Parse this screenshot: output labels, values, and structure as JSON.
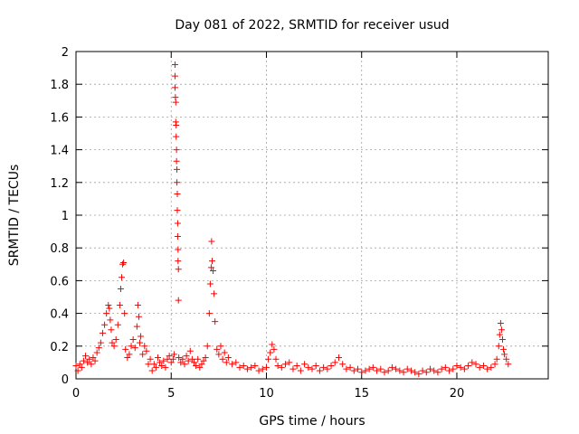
{
  "chart_data": {
    "type": "scatter",
    "title": "Day 081 of 2022, SRMTID for receiver usud",
    "xlabel": "GPS time / hours",
    "ylabel": "SRMTID / TECUs",
    "xlim": [
      0,
      24.8
    ],
    "ylim": [
      0,
      2
    ],
    "xticks": [
      0,
      5,
      10,
      15,
      20
    ],
    "yticks": [
      0,
      0.2,
      0.4,
      0.6,
      0.8,
      1,
      1.2,
      1.4,
      1.6,
      1.8,
      2
    ],
    "grid": true,
    "marker": "+",
    "color": "#ff0000",
    "series": [
      {
        "name": "usud",
        "x": [
          0.0,
          0.1,
          0.2,
          0.3,
          0.4,
          0.5,
          0.6,
          0.7,
          0.8,
          0.9,
          1.0,
          1.1,
          1.2,
          1.3,
          1.4,
          1.5,
          1.6,
          1.7,
          1.75,
          1.8,
          1.85,
          1.9,
          2.0,
          2.1,
          2.2,
          2.3,
          2.35,
          2.4,
          2.45,
          2.5,
          2.55,
          2.6,
          2.7,
          2.8,
          2.9,
          3.0,
          3.1,
          3.2,
          3.25,
          3.3,
          3.35,
          3.4,
          3.5,
          3.6,
          3.7,
          3.8,
          3.9,
          4.0,
          4.1,
          4.2,
          4.3,
          4.4,
          4.5,
          4.6,
          4.7,
          4.8,
          4.9,
          5.0,
          5.1,
          5.15,
          5.2,
          5.2,
          5.2,
          5.22,
          5.24,
          5.24,
          5.26,
          5.26,
          5.28,
          5.28,
          5.3,
          5.3,
          5.32,
          5.32,
          5.34,
          5.34,
          5.36,
          5.36,
          5.38,
          5.38,
          5.4,
          5.5,
          5.6,
          5.7,
          5.8,
          5.9,
          6.0,
          6.1,
          6.2,
          6.3,
          6.4,
          6.5,
          6.6,
          6.7,
          6.8,
          6.9,
          7.0,
          7.05,
          7.1,
          7.12,
          7.15,
          7.2,
          7.25,
          7.3,
          7.4,
          7.5,
          7.6,
          7.7,
          7.8,
          7.9,
          8.0,
          8.2,
          8.4,
          8.6,
          8.8,
          9.0,
          9.2,
          9.4,
          9.6,
          9.8,
          10.0,
          10.1,
          10.2,
          10.3,
          10.4,
          10.5,
          10.6,
          10.8,
          11.0,
          11.2,
          11.4,
          11.6,
          11.8,
          12.0,
          12.2,
          12.4,
          12.6,
          12.8,
          13.0,
          13.2,
          13.4,
          13.6,
          13.8,
          14.0,
          14.2,
          14.4,
          14.6,
          14.8,
          15.0,
          15.2,
          15.4,
          15.6,
          15.8,
          16.0,
          16.2,
          16.4,
          16.6,
          16.8,
          17.0,
          17.2,
          17.4,
          17.6,
          17.8,
          18.0,
          18.2,
          18.4,
          18.6,
          18.8,
          19.0,
          19.2,
          19.4,
          19.6,
          19.8,
          20.0,
          20.2,
          20.4,
          20.6,
          20.8,
          21.0,
          21.2,
          21.4,
          21.6,
          21.8,
          22.0,
          22.1,
          22.2,
          22.25,
          22.3,
          22.35,
          22.4,
          22.45,
          22.5,
          22.6,
          22.7
        ],
        "y": [
          0.08,
          0.05,
          0.09,
          0.07,
          0.11,
          0.14,
          0.1,
          0.12,
          0.09,
          0.13,
          0.11,
          0.16,
          0.19,
          0.22,
          0.28,
          0.33,
          0.4,
          0.45,
          0.43,
          0.36,
          0.3,
          0.22,
          0.2,
          0.24,
          0.33,
          0.45,
          0.55,
          0.62,
          0.7,
          0.71,
          0.4,
          0.18,
          0.13,
          0.15,
          0.2,
          0.24,
          0.19,
          0.32,
          0.45,
          0.38,
          0.22,
          0.26,
          0.15,
          0.2,
          0.17,
          0.09,
          0.12,
          0.05,
          0.09,
          0.07,
          0.13,
          0.1,
          0.08,
          0.11,
          0.07,
          0.12,
          0.14,
          0.1,
          0.12,
          0.15,
          1.92,
          1.85,
          1.78,
          1.72,
          1.69,
          1.57,
          1.55,
          1.48,
          1.4,
          1.33,
          1.28,
          1.2,
          1.13,
          1.03,
          0.95,
          0.87,
          0.79,
          0.72,
          0.67,
          0.48,
          0.13,
          0.1,
          0.12,
          0.09,
          0.14,
          0.11,
          0.17,
          0.12,
          0.1,
          0.08,
          0.12,
          0.07,
          0.09,
          0.11,
          0.13,
          0.2,
          0.4,
          0.58,
          0.68,
          0.84,
          0.72,
          0.66,
          0.52,
          0.35,
          0.18,
          0.15,
          0.2,
          0.12,
          0.16,
          0.1,
          0.13,
          0.09,
          0.1,
          0.07,
          0.08,
          0.06,
          0.07,
          0.08,
          0.05,
          0.06,
          0.07,
          0.12,
          0.16,
          0.21,
          0.18,
          0.12,
          0.08,
          0.07,
          0.09,
          0.1,
          0.06,
          0.08,
          0.05,
          0.09,
          0.07,
          0.06,
          0.08,
          0.05,
          0.07,
          0.06,
          0.08,
          0.1,
          0.13,
          0.09,
          0.06,
          0.07,
          0.05,
          0.06,
          0.04,
          0.05,
          0.06,
          0.07,
          0.05,
          0.06,
          0.04,
          0.05,
          0.07,
          0.06,
          0.05,
          0.04,
          0.06,
          0.05,
          0.04,
          0.03,
          0.05,
          0.04,
          0.06,
          0.05,
          0.04,
          0.06,
          0.07,
          0.05,
          0.06,
          0.08,
          0.07,
          0.06,
          0.08,
          0.1,
          0.09,
          0.07,
          0.08,
          0.06,
          0.07,
          0.09,
          0.12,
          0.2,
          0.27,
          0.34,
          0.3,
          0.24,
          0.18,
          0.15,
          0.12,
          0.09
        ]
      }
    ]
  }
}
